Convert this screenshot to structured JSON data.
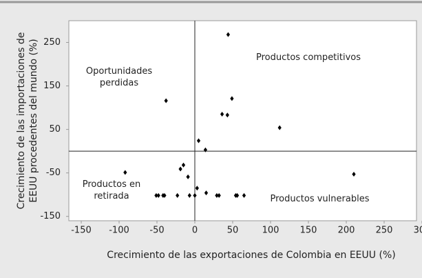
{
  "chart_data": {
    "type": "scatter",
    "xlabel": "Crecimiento de las exportaciones de Colombia en EEUU (%)",
    "ylabel": [
      "Crecimiento de las importaciones de",
      "EEUU procedentes del mundo (%)"
    ],
    "annotations": [
      {
        "lines": [
          "Oportunidades",
          "perdidas"
        ],
        "x": -100,
        "y": 170
      },
      {
        "lines": [
          "Productos competitivos"
        ],
        "x": 150,
        "y": 215
      },
      {
        "lines": [
          "Productos en",
          "retirada"
        ],
        "x": -110,
        "y": -90
      },
      {
        "lines": [
          "Productos vulnerables"
        ],
        "x": 165,
        "y": -110
      }
    ],
    "color": "#000000",
    "x": [
      44,
      49,
      36,
      43,
      112,
      -38,
      5,
      14,
      -92,
      -15,
      -19,
      -9,
      210,
      3,
      15,
      -51,
      -48,
      -42,
      -40,
      -23,
      -7,
      0,
      29,
      32,
      54,
      56,
      65
    ],
    "values": [
      268,
      121,
      85,
      83,
      54,
      116,
      24,
      3,
      -49,
      -32,
      -41,
      -59,
      -53,
      -85,
      -96,
      -102,
      -102,
      -102,
      -102,
      -102,
      -102,
      -102,
      -102,
      -102,
      -102,
      -102,
      -102
    ],
    "xlim": [
      -150,
      300
    ],
    "xticks": [
      -150,
      -100,
      -50,
      0,
      50,
      100,
      150,
      200,
      250,
      300
    ],
    "ylim": [
      -160,
      300
    ],
    "yticks": [
      -150,
      -50,
      50,
      150,
      250
    ]
  }
}
